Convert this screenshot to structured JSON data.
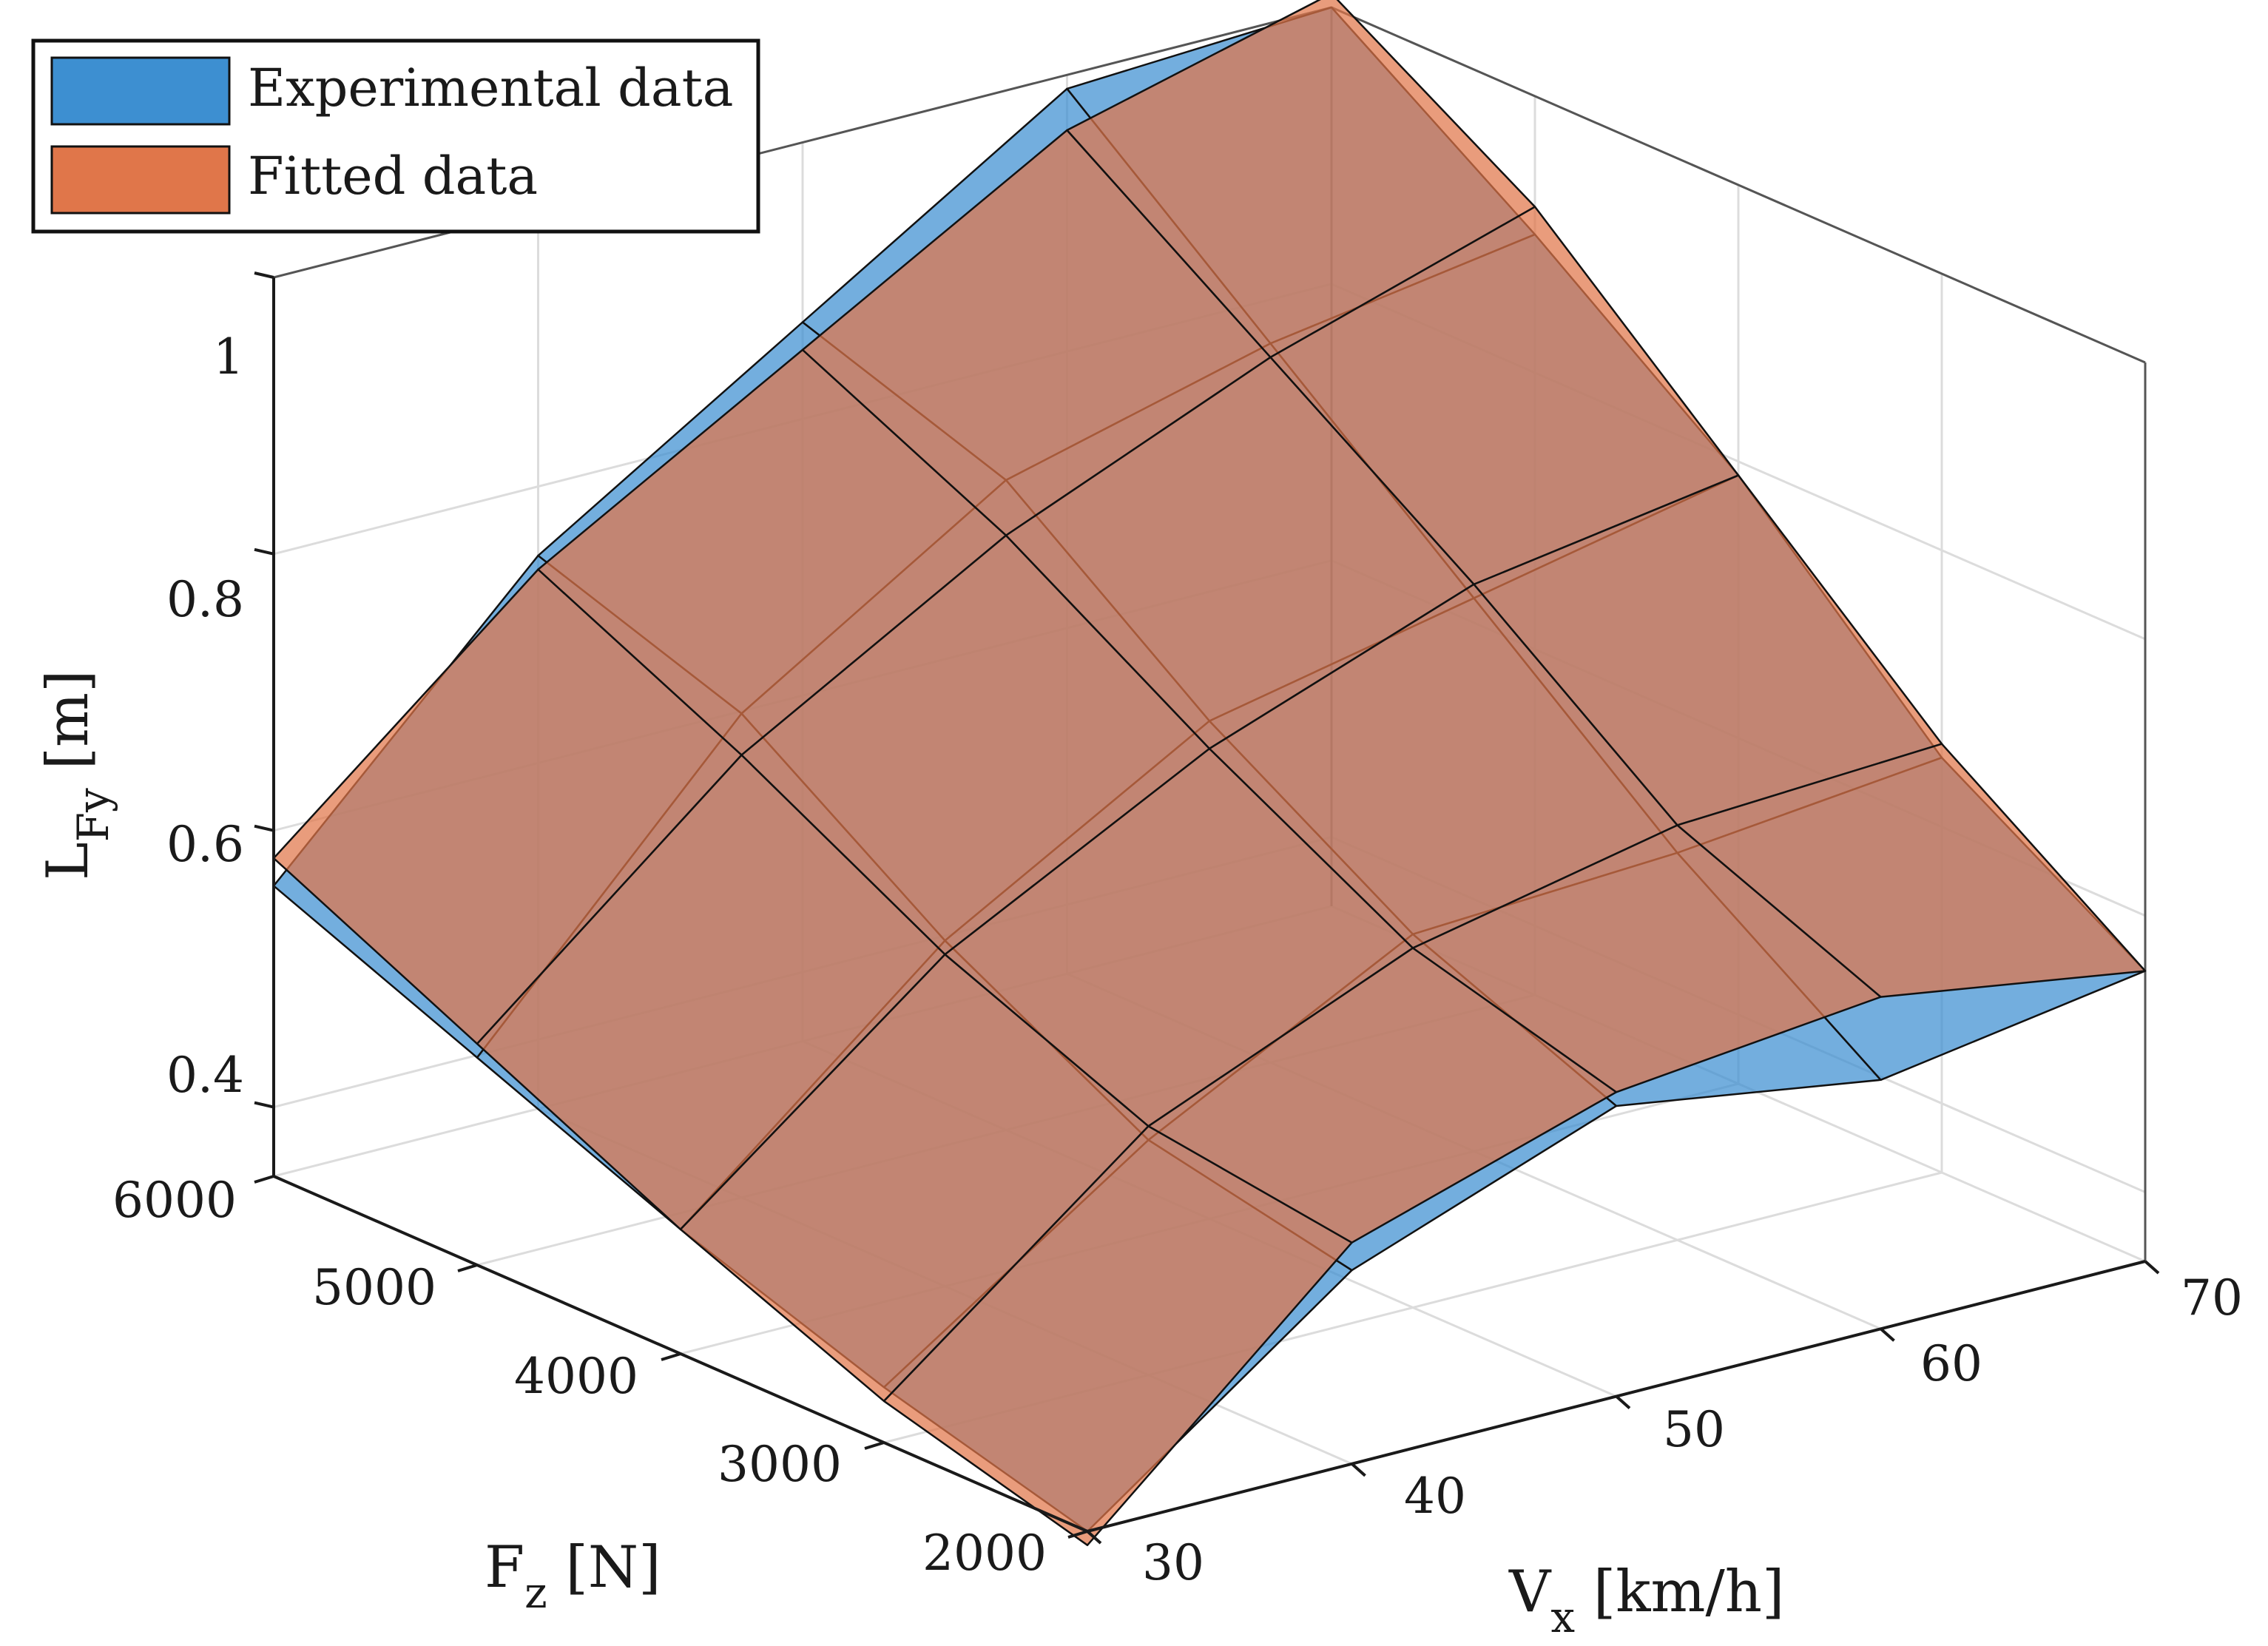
{
  "chart_data": {
    "type": "surface3d",
    "title": "",
    "xlabel": {
      "main": "V",
      "sub": "x",
      "unit": " [km/h]"
    },
    "ylabel": {
      "main": "F",
      "sub": "z",
      "unit": " [N]"
    },
    "zlabel": {
      "main": "L",
      "sub": "Fy",
      "unit": " [m]"
    },
    "x_ticks": [
      "30",
      "40",
      "50",
      "60",
      "70"
    ],
    "y_ticks": [
      "2000",
      "3000",
      "4000",
      "5000",
      "6000"
    ],
    "z_ticks": [
      "0.4",
      "0.6",
      "0.8",
      "1"
    ],
    "x": [
      30,
      40,
      50,
      60,
      70
    ],
    "y": [
      2000,
      3000,
      4000,
      5000,
      6000
    ],
    "xlim": [
      30,
      70
    ],
    "ylim": [
      2000,
      6000
    ],
    "zlim": [
      0.35,
      1.0
    ],
    "legend_position": "top-left",
    "series": [
      {
        "name": "Experimental data",
        "color": "#3d8fd1",
        "z": [
          [
            0.35,
            0.49,
            0.56,
            0.53,
            0.56
          ],
          [
            0.39,
            0.52,
            0.62,
            0.63,
            0.65
          ],
          [
            0.44,
            0.6,
            0.71,
            0.75,
            0.79
          ],
          [
            0.5,
            0.7,
            0.82,
            0.87,
            0.9
          ],
          [
            0.56,
            0.75,
            0.87,
            0.99,
            1.0
          ]
        ]
      },
      {
        "name": "Fitted data",
        "color": "#e0764a",
        "z": [
          [
            0.34,
            0.51,
            0.57,
            0.59,
            0.56
          ],
          [
            0.38,
            0.53,
            0.61,
            0.65,
            0.66
          ],
          [
            0.44,
            0.59,
            0.69,
            0.76,
            0.79
          ],
          [
            0.51,
            0.67,
            0.78,
            0.86,
            0.92
          ],
          [
            0.58,
            0.74,
            0.85,
            0.96,
            1.01
          ]
        ]
      }
    ]
  }
}
